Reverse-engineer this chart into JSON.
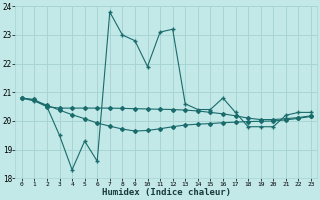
{
  "xlabel": "Humidex (Indice chaleur)",
  "background_color": "#c2e8e8",
  "grid_color": "#a8d4d4",
  "line_color": "#1a6b6b",
  "xlim": [
    -0.5,
    23.5
  ],
  "ylim": [
    18,
    24
  ],
  "yticks": [
    18,
    19,
    20,
    21,
    22,
    23,
    24
  ],
  "xticks": [
    0,
    1,
    2,
    3,
    4,
    5,
    6,
    7,
    8,
    9,
    10,
    11,
    12,
    13,
    14,
    15,
    16,
    17,
    18,
    19,
    20,
    21,
    22,
    23
  ],
  "series1": [
    20.8,
    20.7,
    20.5,
    19.5,
    18.3,
    19.3,
    18.6,
    23.8,
    23.0,
    22.8,
    21.9,
    23.1,
    23.2,
    20.6,
    20.4,
    20.4,
    20.8,
    20.3,
    19.8,
    19.8,
    19.8,
    20.2,
    20.3,
    20.3
  ],
  "series2": [
    20.8,
    20.75,
    20.5,
    20.45,
    20.45,
    20.45,
    20.45,
    20.45,
    20.44,
    20.43,
    20.42,
    20.41,
    20.4,
    20.38,
    20.35,
    20.3,
    20.25,
    20.18,
    20.1,
    20.05,
    20.05,
    20.08,
    20.12,
    20.18
  ],
  "series3": [
    20.8,
    20.72,
    20.55,
    20.38,
    20.22,
    20.08,
    19.93,
    19.82,
    19.72,
    19.65,
    19.67,
    19.73,
    19.8,
    19.86,
    19.89,
    19.91,
    19.94,
    19.96,
    19.98,
    19.99,
    20.0,
    20.04,
    20.09,
    20.16
  ]
}
